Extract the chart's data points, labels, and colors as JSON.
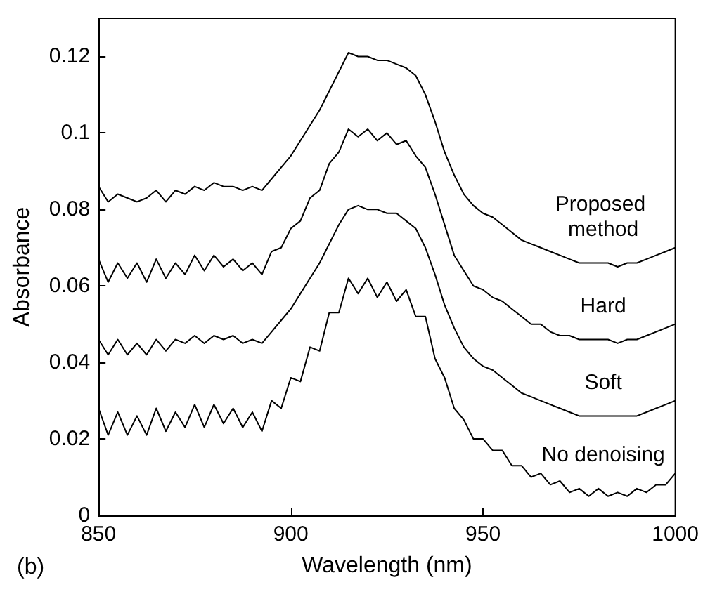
{
  "chart_data": {
    "type": "line",
    "xlabel": "Wavelength (nm)",
    "ylabel": "Absorbance",
    "annotations": [
      "(b)"
    ],
    "x": [
      850,
      852.5,
      855,
      857.5,
      860,
      862.5,
      865,
      867.5,
      870,
      872.5,
      875,
      877.5,
      880,
      882.5,
      885,
      887.5,
      890,
      892.5,
      895,
      897.5,
      900,
      902.5,
      905,
      907.5,
      910,
      912.5,
      915,
      917.5,
      920,
      922.5,
      925,
      927.5,
      930,
      932.5,
      935,
      937.5,
      940,
      942.5,
      945,
      947.5,
      950,
      952.5,
      955,
      957.5,
      960,
      962.5,
      965,
      967.5,
      970,
      972.5,
      975,
      977.5,
      980,
      982.5,
      985,
      987.5,
      990,
      992.5,
      995,
      997.5,
      1000
    ],
    "series": [
      {
        "name": "Proposed method",
        "color": "#000000",
        "values": [
          0.086,
          0.082,
          0.084,
          0.083,
          0.082,
          0.083,
          0.085,
          0.082,
          0.085,
          0.084,
          0.086,
          0.085,
          0.087,
          0.086,
          0.086,
          0.085,
          0.086,
          0.085,
          0.088,
          0.091,
          0.094,
          0.098,
          0.102,
          0.106,
          0.111,
          0.116,
          0.121,
          0.12,
          0.12,
          0.119,
          0.119,
          0.118,
          0.117,
          0.115,
          0.11,
          0.103,
          0.095,
          0.089,
          0.084,
          0.081,
          0.079,
          0.078,
          0.076,
          0.074,
          0.072,
          0.071,
          0.07,
          0.069,
          0.068,
          0.067,
          0.066,
          0.066,
          0.066,
          0.066,
          0.065,
          0.066,
          0.066,
          0.067,
          0.068,
          0.069,
          0.07
        ]
      },
      {
        "name": "Hard",
        "color": "#000000",
        "values": [
          0.067,
          0.061,
          0.066,
          0.062,
          0.066,
          0.061,
          0.067,
          0.062,
          0.066,
          0.063,
          0.068,
          0.064,
          0.068,
          0.065,
          0.067,
          0.064,
          0.066,
          0.063,
          0.069,
          0.07,
          0.075,
          0.077,
          0.083,
          0.085,
          0.092,
          0.095,
          0.101,
          0.099,
          0.101,
          0.098,
          0.1,
          0.097,
          0.098,
          0.094,
          0.091,
          0.084,
          0.076,
          0.068,
          0.064,
          0.06,
          0.059,
          0.057,
          0.056,
          0.054,
          0.052,
          0.05,
          0.05,
          0.048,
          0.047,
          0.047,
          0.046,
          0.046,
          0.046,
          0.046,
          0.045,
          0.046,
          0.046,
          0.047,
          0.048,
          0.049,
          0.05
        ]
      },
      {
        "name": "Soft",
        "color": "#000000",
        "values": [
          0.046,
          0.042,
          0.046,
          0.042,
          0.045,
          0.042,
          0.046,
          0.043,
          0.046,
          0.045,
          0.047,
          0.045,
          0.047,
          0.046,
          0.047,
          0.045,
          0.046,
          0.045,
          0.048,
          0.051,
          0.054,
          0.058,
          0.062,
          0.066,
          0.071,
          0.076,
          0.08,
          0.081,
          0.08,
          0.08,
          0.079,
          0.079,
          0.077,
          0.075,
          0.07,
          0.063,
          0.055,
          0.049,
          0.044,
          0.041,
          0.039,
          0.038,
          0.036,
          0.034,
          0.032,
          0.031,
          0.03,
          0.029,
          0.028,
          0.027,
          0.026,
          0.026,
          0.026,
          0.026,
          0.026,
          0.026,
          0.026,
          0.027,
          0.028,
          0.029,
          0.03
        ]
      },
      {
        "name": "No denoising",
        "color": "#000000",
        "values": [
          0.028,
          0.021,
          0.027,
          0.021,
          0.026,
          0.021,
          0.028,
          0.022,
          0.027,
          0.023,
          0.029,
          0.023,
          0.029,
          0.024,
          0.028,
          0.023,
          0.027,
          0.022,
          0.03,
          0.028,
          0.036,
          0.035,
          0.044,
          0.043,
          0.053,
          0.053,
          0.062,
          0.058,
          0.062,
          0.057,
          0.061,
          0.056,
          0.059,
          0.052,
          0.052,
          0.041,
          0.036,
          0.028,
          0.025,
          0.02,
          0.02,
          0.017,
          0.017,
          0.013,
          0.013,
          0.01,
          0.011,
          0.008,
          0.009,
          0.006,
          0.007,
          0.005,
          0.007,
          0.005,
          0.006,
          0.005,
          0.007,
          0.006,
          0.008,
          0.008,
          0.011
        ]
      }
    ],
    "xlim": [
      850,
      1000
    ],
    "xticks": [
      850,
      900,
      950,
      1000
    ],
    "ylim": [
      0,
      0.13
    ],
    "yticks": [
      0,
      0.02,
      0.04,
      0.06,
      0.08,
      0.1,
      0.12
    ],
    "grid": false,
    "legend": false,
    "marker": "none",
    "line_style": "solid"
  }
}
